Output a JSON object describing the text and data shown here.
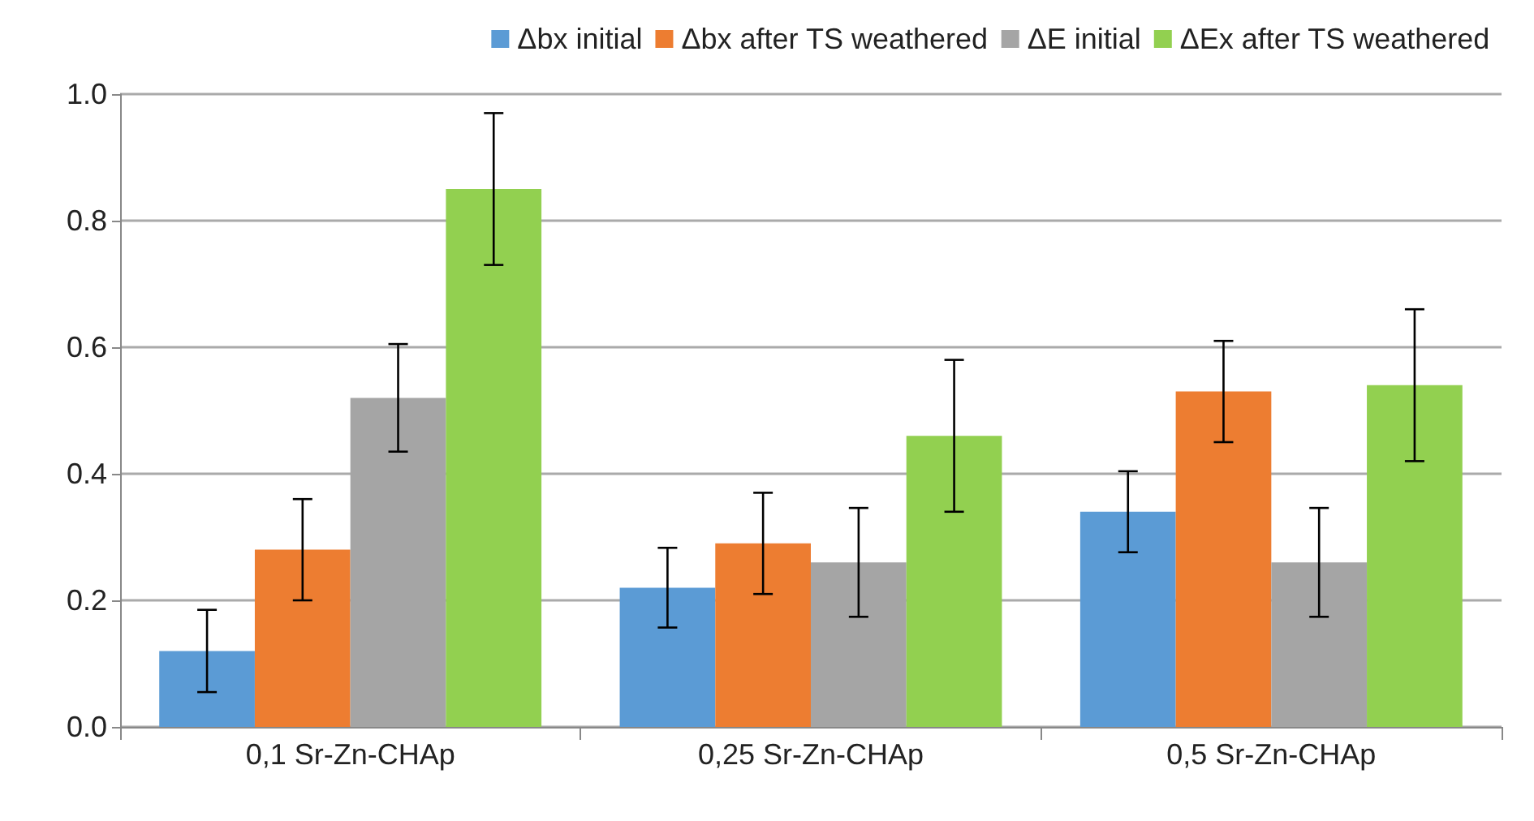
{
  "chart_data": {
    "type": "bar",
    "categories": [
      "0,1 Sr-Zn-CHAp",
      "0,25 Sr-Zn-CHAp",
      "0,5 Sr-Zn-CHAp"
    ],
    "series": [
      {
        "name": "Δbx initial",
        "color": "#5b9bd5",
        "values": [
          0.12,
          0.22,
          0.34
        ],
        "errors": [
          0.065,
          0.063,
          0.064
        ]
      },
      {
        "name": "Δbx after TS weathered",
        "color": "#ed7d31",
        "values": [
          0.28,
          0.29,
          0.53
        ],
        "errors": [
          0.08,
          0.08,
          0.08
        ]
      },
      {
        "name": "ΔE initial",
        "color": "#a5a5a5",
        "values": [
          0.52,
          0.26,
          0.26
        ],
        "errors": [
          0.085,
          0.086,
          0.086
        ]
      },
      {
        "name": "ΔEx after TS weathered",
        "color": "#92d050",
        "values": [
          0.85,
          0.46,
          0.54
        ],
        "errors": [
          0.12,
          0.12,
          0.12
        ]
      }
    ],
    "ylim": [
      0,
      1.0
    ],
    "yticks": [
      {
        "value": 0,
        "label": "0.0"
      },
      {
        "value": 0.2,
        "label": "0.2"
      },
      {
        "value": 0.4,
        "label": "0.4"
      },
      {
        "value": 0.6,
        "label": "0.6"
      },
      {
        "value": 0.8,
        "label": "0.8"
      },
      {
        "value": 1.0,
        "label": "1.0"
      }
    ],
    "grid": "y",
    "legend": "top right"
  }
}
